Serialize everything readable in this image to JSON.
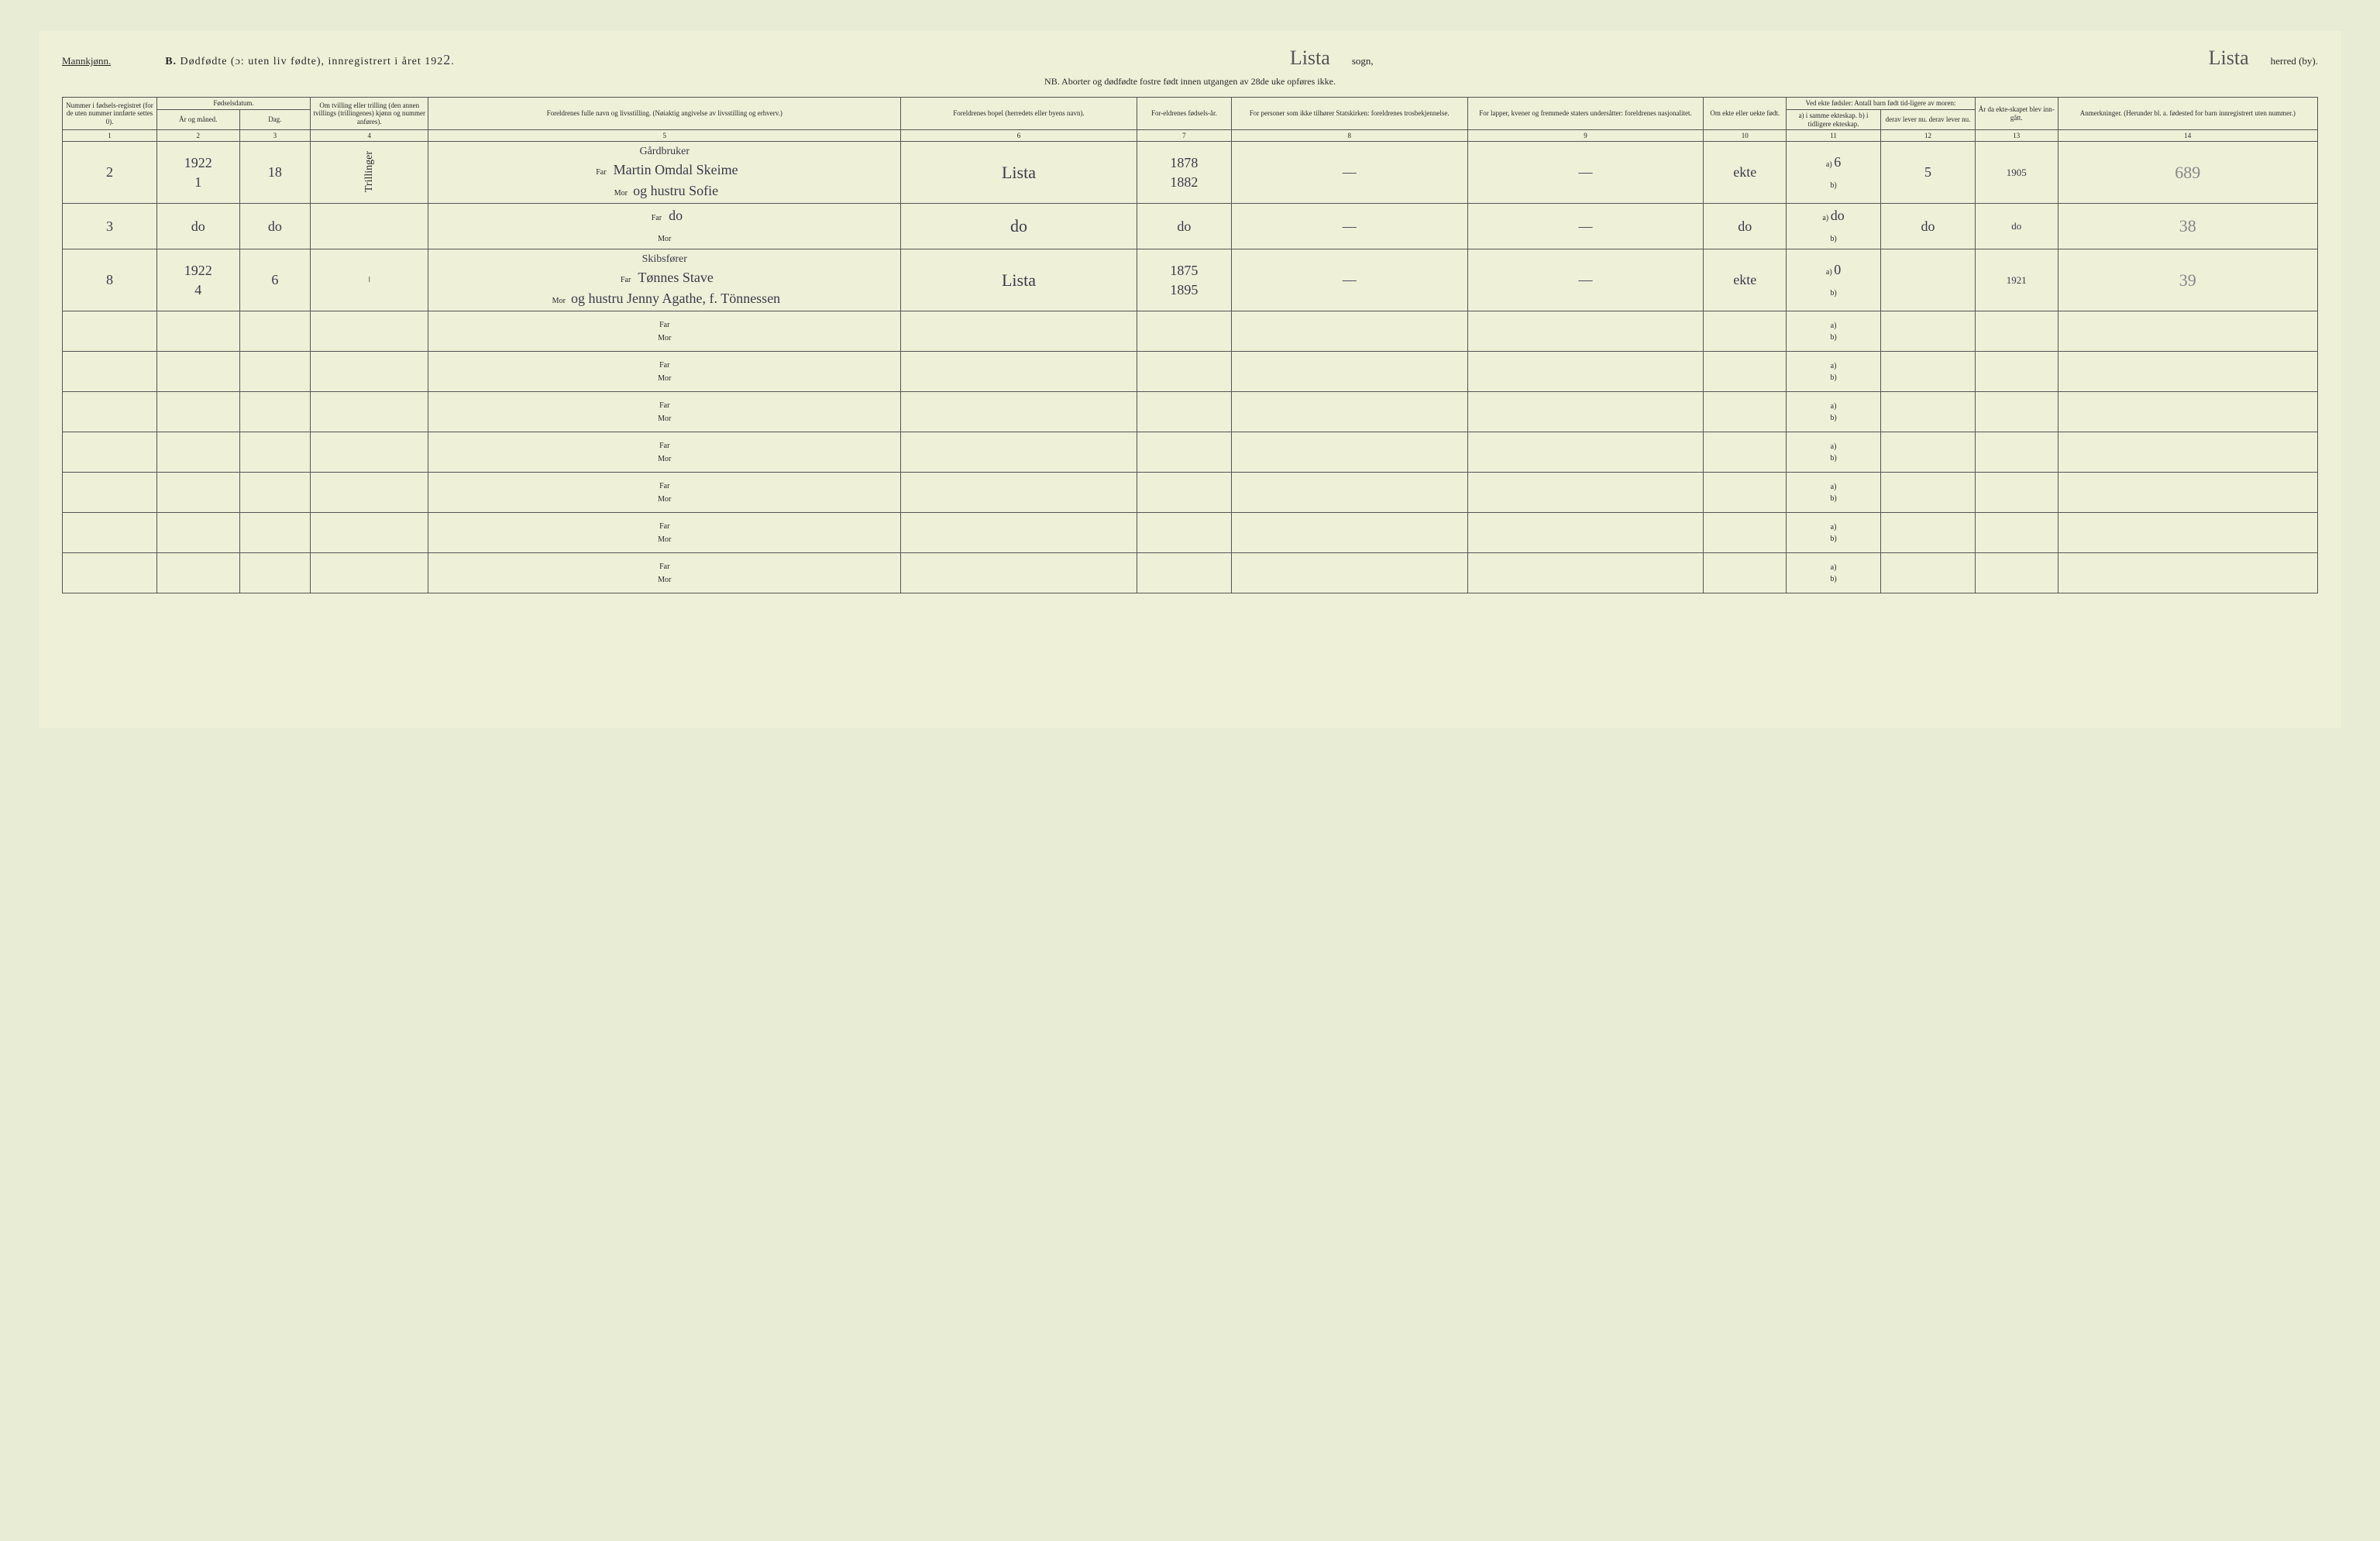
{
  "header": {
    "gender_label": "Mannkjønn.",
    "title_prefix": "B.",
    "title_main": "Dødfødte (ɔ: uten liv fødte), innregistrert i året 192",
    "year_suffix": "2",
    "sogn_cursive": "Lista",
    "sogn_label": "sogn,",
    "herred_cursive": "Lista",
    "herred_label": "herred (by).",
    "nb_line": "NB. Aborter og dødfødte fostre født innen utgangen av 28de uke opføres ikke."
  },
  "columns": {
    "c1": "Nummer i fødsels-registret (for de uten nummer innførte settes 0).",
    "c2_group": "Fødselsdatum.",
    "c2": "År og måned.",
    "c3": "Dag.",
    "c4": "Om tvilling eller trilling (den annen tvillings (trillingenes) kjønn og nummer anføres).",
    "c5": "Foreldrenes fulle navn og livsstilling. (Nøiaktig angivelse av livsstilling og erhverv.)",
    "c6": "Foreldrenes bopel (herredets eller byens navn).",
    "c7": "For-eldrenes fødsels-år.",
    "c8": "For personer som ikke tilhører Statskirken: foreldrenes trosbekjennelse.",
    "c9": "For lapper, kvener og fremmede staters undersåtter: foreldrenes nasjonalitet.",
    "c10": "Om ekte eller uekte født.",
    "c11_group": "Ved ekte fødsler: Antall barn født tid-ligere av moren:",
    "c11": "a) i samme ekteskap. b) i tidligere ekteskap.",
    "c12": "derav lever nu. derav lever nu.",
    "c13": "År da ekte-skapet blev inn-gått.",
    "c14": "Anmerkninger. (Herunder bl. a. fødested for barn innregistrert uten nummer.)",
    "far_label": "Far",
    "mor_label": "Mor",
    "a_label": "a)",
    "b_label": "b)"
  },
  "colnums": [
    "1",
    "2",
    "3",
    "4",
    "5",
    "6",
    "7",
    "8",
    "9",
    "10",
    "11",
    "12",
    "13",
    "14"
  ],
  "rows": [
    {
      "num": "2",
      "year_month_top": "1922",
      "year_month_bot": "1",
      "day": "18",
      "twin": "Trillinger",
      "occupation": "Gårdbruker",
      "far": "Martin Omdal Skeime",
      "mor": "og hustru Sofie",
      "bopel": "Lista",
      "far_year": "1878",
      "mor_year": "1882",
      "c8": "—",
      "c9": "—",
      "ekte": "ekte",
      "c11a": "6",
      "c11b": "",
      "c12a": "5",
      "c12b": "",
      "c13": "1905",
      "remark": "689"
    },
    {
      "num": "3",
      "year_month_top": "",
      "year_month_bot": "do",
      "day": "do",
      "twin": "",
      "occupation": "",
      "far": "do",
      "mor": "",
      "bopel": "do",
      "far_year": "do",
      "mor_year": "",
      "c8": "—",
      "c9": "—",
      "ekte": "do",
      "c11a": "do",
      "c11b": "",
      "c12a": "do",
      "c12b": "",
      "c13": "do",
      "remark": "38"
    },
    {
      "num": "8",
      "year_month_top": "1922",
      "year_month_bot": "4",
      "day": "6",
      "twin": "–",
      "occupation": "Skibsfører",
      "far": "Tønnes Stave",
      "mor": "og hustru Jenny Agathe, f. Tönnessen",
      "bopel": "Lista",
      "far_year": "1875",
      "mor_year": "1895",
      "c8": "—",
      "c9": "—",
      "ekte": "ekte",
      "c11a": "0",
      "c11b": "",
      "c12a": "",
      "c12b": "",
      "c13": "1921",
      "remark": "39"
    }
  ],
  "empty_rows": 7
}
